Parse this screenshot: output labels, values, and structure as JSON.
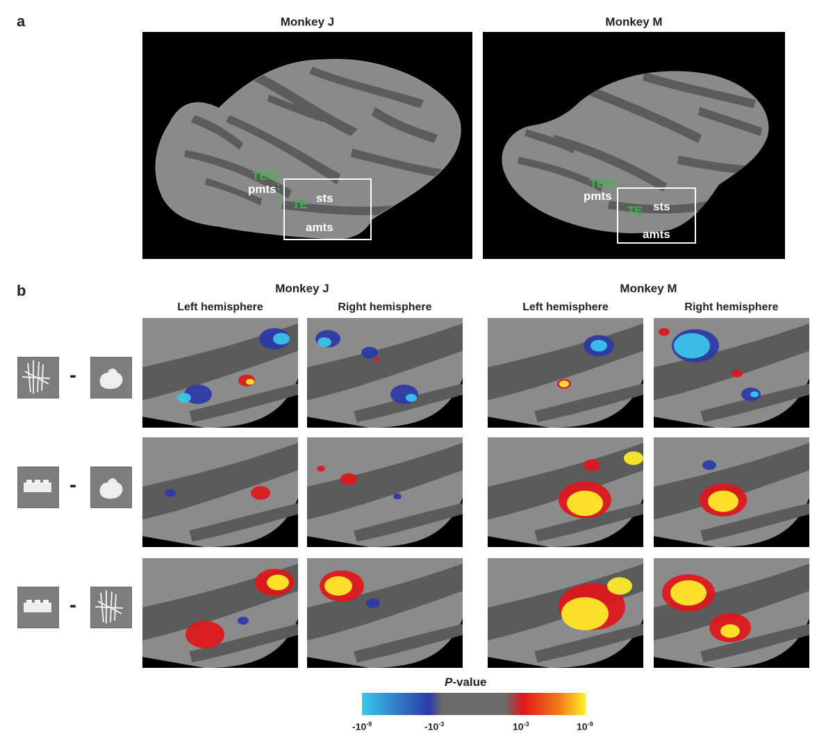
{
  "panel_a": {
    "letter": "a",
    "monkeys": [
      {
        "title": "Monkey J",
        "labels": {
          "teo": "TEO",
          "pmts": "pmts",
          "te": "TE",
          "sts": "sts",
          "amts": "amts"
        }
      },
      {
        "title": "Monkey M",
        "labels": {
          "teo": "TEO",
          "pmts": "pmts",
          "te": "TE",
          "sts": "sts",
          "amts": "amts"
        }
      }
    ]
  },
  "panel_b": {
    "letter": "b",
    "monkeys": [
      {
        "title": "Monkey J",
        "hemispheres": [
          "Left hemisphere",
          "Right hemisphere"
        ]
      },
      {
        "title": "Monkey M",
        "hemispheres": [
          "Left hemisphere",
          "Right hemisphere"
        ]
      }
    ],
    "contrasts": [
      {
        "left_stimulus": "spiky-object",
        "operator": "-",
        "right_stimulus": "blob-object"
      },
      {
        "left_stimulus": "cubic-object",
        "operator": "-",
        "right_stimulus": "blob-object"
      },
      {
        "left_stimulus": "cubic-object",
        "operator": "-",
        "right_stimulus": "spiky-object"
      }
    ]
  },
  "colorbar": {
    "title_italic": "P",
    "title_rest": "-value",
    "ticks": [
      {
        "base": "-10",
        "exp": "-9"
      },
      {
        "base": "-10",
        "exp": "-3"
      },
      {
        "base": "10",
        "exp": "-3"
      },
      {
        "base": "10",
        "exp": "-9"
      }
    ],
    "colors": {
      "neg_strong": "#39c8ea",
      "neg_weak": "#2a3aa8",
      "neutral": "#6b6b6b",
      "pos_weak": "#e0161b",
      "pos_strong": "#fff02a"
    }
  }
}
